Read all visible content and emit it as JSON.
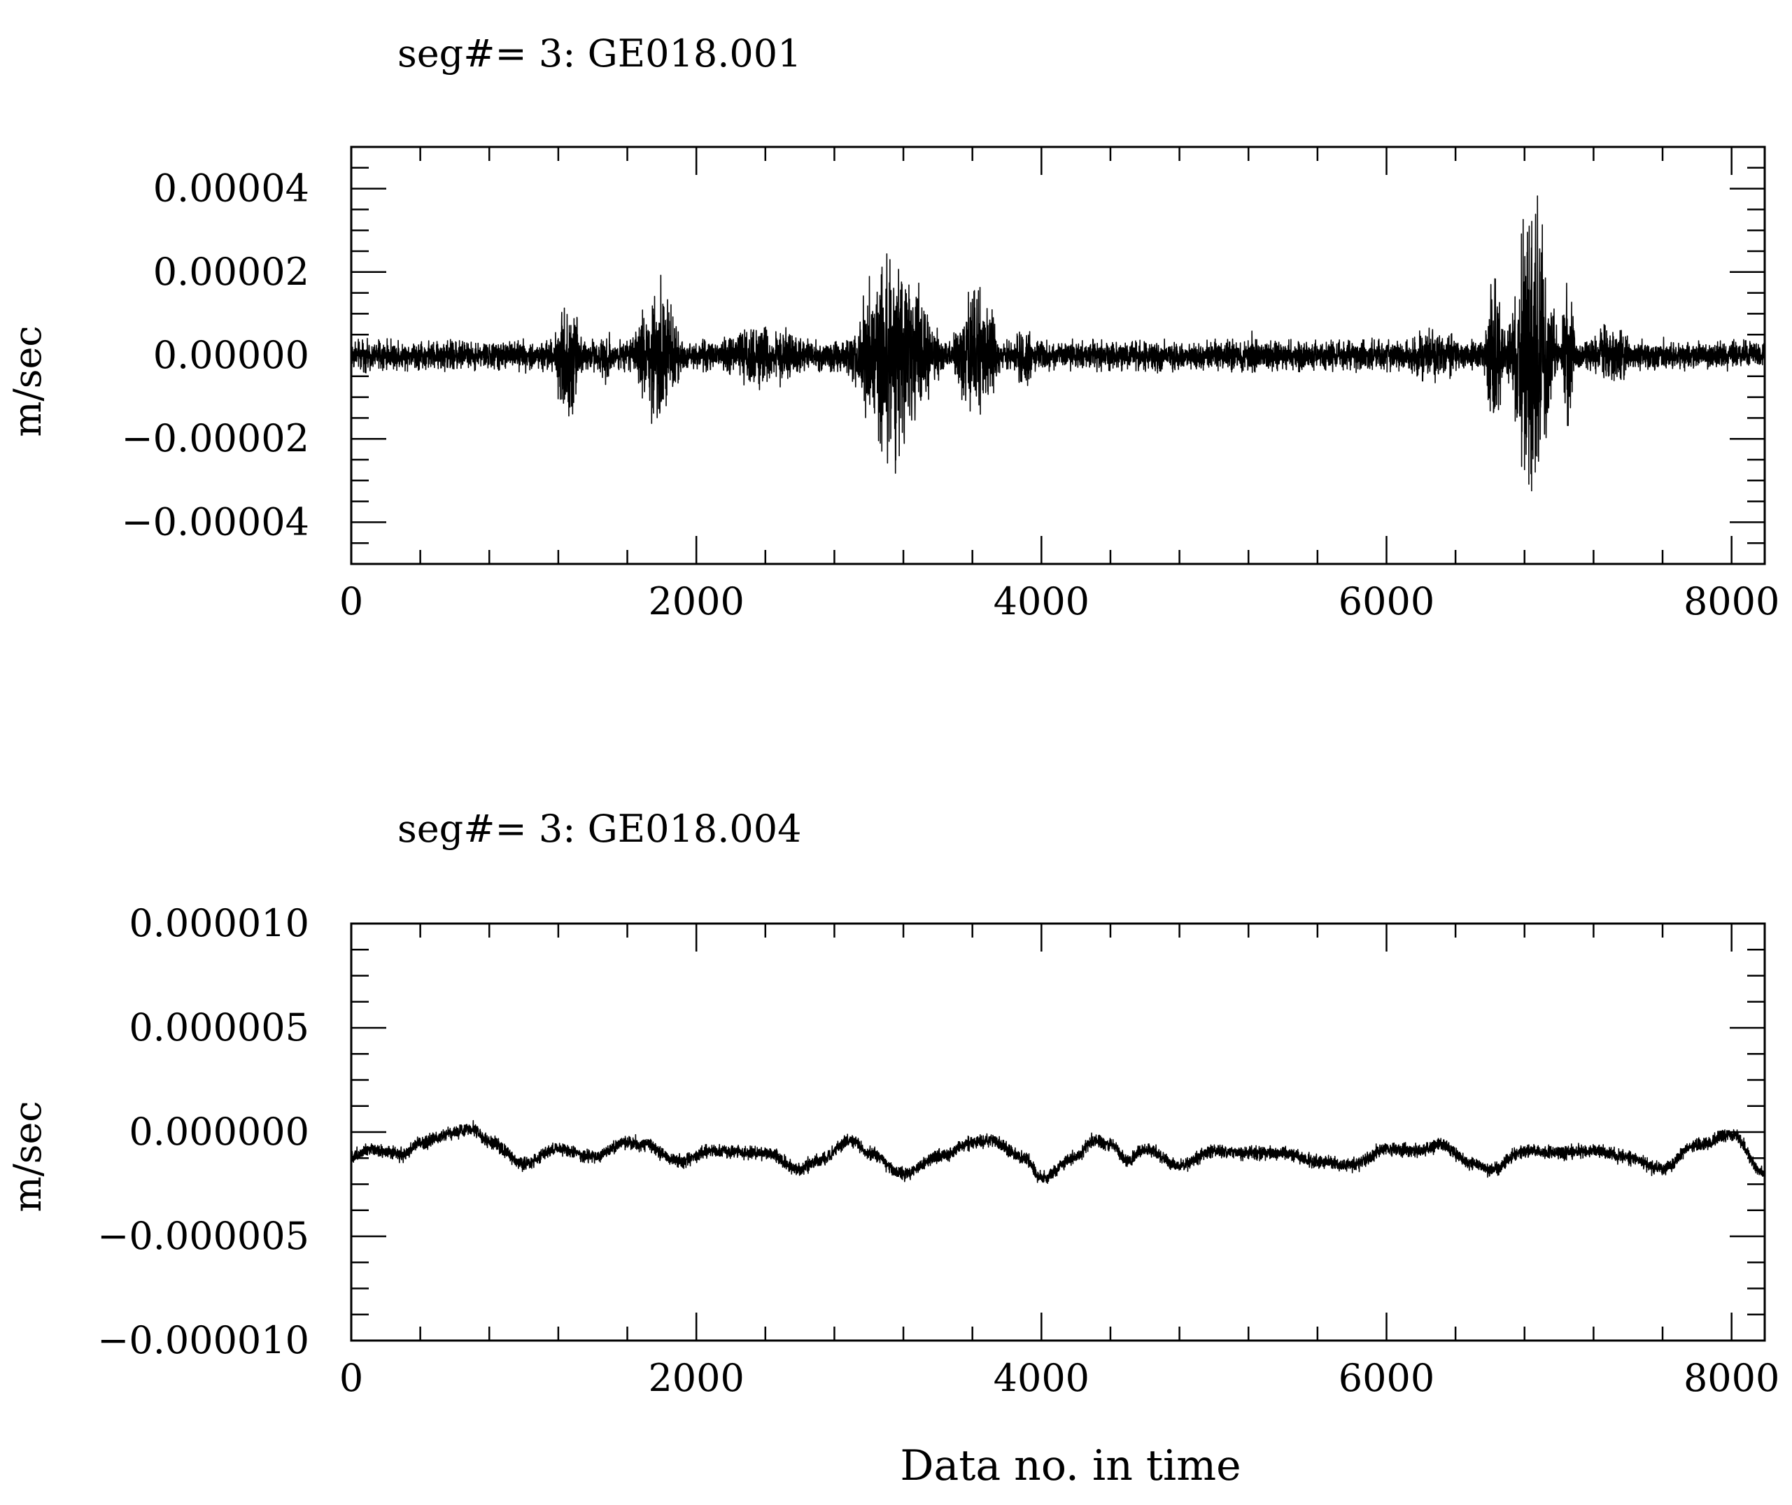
{
  "chart_data": [
    {
      "type": "line",
      "title": "seg#=  3:  GE018.001",
      "ylabel": "m/sec",
      "xlabel": "",
      "xlim": [
        0,
        8192
      ],
      "ylim": [
        -5e-05,
        5e-05
      ],
      "x_ticks": [
        0,
        2000,
        4000,
        6000,
        8000
      ],
      "x_tick_labels": [
        "0",
        "2000",
        "4000",
        "6000",
        "8000"
      ],
      "y_ticks": [
        4e-05,
        2e-05,
        0.0,
        -2e-05,
        -4e-05
      ],
      "y_tick_labels": [
        "0.00004",
        "0.00002",
        "0.00000",
        "−0.00002",
        "−0.00004"
      ],
      "grid": false,
      "series": [
        {
          "description": "noisy seismic velocity trace with bursts",
          "n_points": 8192,
          "baseline": 0.0,
          "background_amplitude": 4e-06,
          "envelope": [
            {
              "x": [
                1150,
                1350
              ],
              "amplitude": 2e-05
            },
            {
              "x": [
                1400,
                1550
              ],
              "amplitude": 8e-06
            },
            {
              "x": [
                1600,
                1950
              ],
              "amplitude": 1.9e-05
            },
            {
              "x": [
                2000,
                2750
              ],
              "amplitude": 9e-06
            },
            {
              "x": [
                2850,
                3450
              ],
              "amplitude": 3e-05
            },
            {
              "x": [
                3450,
                3800
              ],
              "amplitude": 1.9e-05
            },
            {
              "x": [
                3800,
                4000
              ],
              "amplitude": 8e-06
            },
            {
              "x": [
                5150,
                5300
              ],
              "amplitude": 6e-06
            },
            {
              "x": [
                6000,
                6550
              ],
              "amplitude": 7e-06
            },
            {
              "x": [
                6550,
                6700
              ],
              "amplitude": 2.2e-05
            },
            {
              "x": [
                6700,
                7000
              ],
              "amplitude": 4.6e-05
            },
            {
              "x": [
                7000,
                7100
              ],
              "amplitude": 2e-05
            },
            {
              "x": [
                7100,
                7500
              ],
              "amplitude": 8e-06
            }
          ]
        }
      ]
    },
    {
      "type": "line",
      "title": "seg#=  3:  GE018.004",
      "ylabel": "m/sec",
      "xlabel": "Data no. in time",
      "xlim": [
        0,
        8192
      ],
      "ylim": [
        -1e-05,
        1e-05
      ],
      "x_ticks": [
        0,
        2000,
        4000,
        6000,
        8000
      ],
      "x_tick_labels": [
        "0",
        "2000",
        "4000",
        "6000",
        "8000"
      ],
      "y_ticks": [
        1e-05,
        5e-06,
        0.0,
        -5e-06,
        -1e-05
      ],
      "y_tick_labels": [
        "0.000010",
        "0.000005",
        "0.000000",
        "−0.000005",
        "−0.000010"
      ],
      "grid": false,
      "series": [
        {
          "description": "slowly varying trace with low-level noise",
          "n_points": 8192,
          "noise_amplitude": 3e-07,
          "x": [
            0,
            100,
            300,
            400,
            600,
            700,
            800,
            1000,
            1200,
            1400,
            1600,
            1700,
            1900,
            2100,
            2400,
            2600,
            2700,
            2900,
            3000,
            3200,
            3400,
            3600,
            3700,
            3900,
            4000,
            4200,
            4300,
            4400,
            4500,
            4600,
            4800,
            5000,
            5200,
            5400,
            5600,
            5800,
            6000,
            6200,
            6300,
            6500,
            6600,
            6800,
            7000,
            7200,
            7400,
            7600,
            7800,
            8000,
            8192
          ],
          "values": [
            -1.2e-06,
            -8e-07,
            -1.1e-06,
            -5e-07,
            0.0,
            2e-07,
            -5e-07,
            -1.5e-06,
            -8e-07,
            -1.2e-06,
            -5e-07,
            -6e-07,
            -1.4e-06,
            -9e-07,
            -1e-06,
            -1.8e-06,
            -1.4e-06,
            -4e-07,
            -1e-06,
            -2e-06,
            -1.2e-06,
            -5e-07,
            -4e-07,
            -1.2e-06,
            -2.2e-06,
            -1.2e-06,
            -4e-07,
            -6e-07,
            -1.4e-06,
            -8e-07,
            -1.6e-06,
            -9e-07,
            -1e-06,
            -1e-06,
            -1.4e-06,
            -1.6e-06,
            -8e-07,
            -9e-07,
            -6e-07,
            -1.5e-06,
            -1.8e-06,
            -9e-07,
            -1e-06,
            -9e-07,
            -1.2e-06,
            -1.8e-06,
            -6e-07,
            -1e-07,
            -2e-06
          ]
        }
      ]
    }
  ]
}
